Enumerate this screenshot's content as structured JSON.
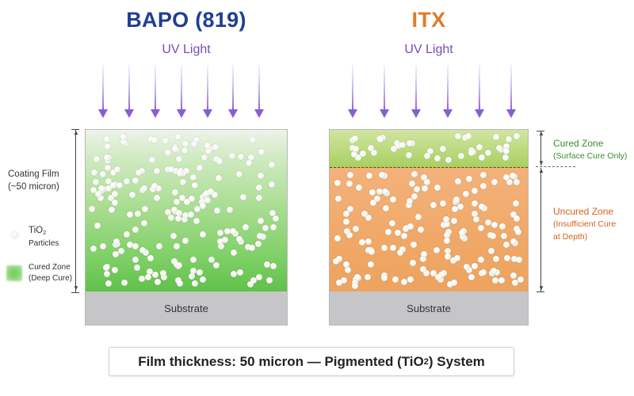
{
  "panels": {
    "bapo": {
      "title": "BAPO (819)",
      "title_color": "#1f3f8f",
      "uv_label": "UV Light",
      "arrow_count": 7,
      "film_zone": "Cured Zone (Deep Cure)",
      "film_color": "#6cc653",
      "substrate_label": "Substrate"
    },
    "itx": {
      "title": "ITX",
      "title_color": "#e07b2a",
      "uv_label": "UV Light",
      "arrow_count": 6,
      "cured_zone_label": "Cured Zone",
      "cured_zone_sub": "(Surface Cure Only)",
      "cured_zone_color": "#b5d673",
      "cured_label_color": "#3c8c2c",
      "uncured_zone_label": "Uncured Zone",
      "uncured_zone_sub1": "(Insufficient Cure",
      "uncured_zone_sub2": "at Depth)",
      "uncured_zone_color": "#f0a867",
      "uncured_label_color": "#d0641e",
      "substrate_label": "Substrate"
    }
  },
  "legend": {
    "coating_film": "Coating Film",
    "coating_film_sub": "(~50 micron)",
    "tio2_label": "TiO",
    "tio2_sub": "2",
    "tio2_particles": "Particles",
    "cured_zone": "Cured Zone",
    "cured_zone_sub": "(Deep Cure)"
  },
  "caption": {
    "text_before": "Film thickness: 50 micron — Pigmented (TiO",
    "sub": "2",
    "text_after": ") System"
  },
  "colors": {
    "uv_arrow": "#8a5cd6",
    "uv_label": "#7a4bb3",
    "substrate": "#c6c6c8"
  }
}
